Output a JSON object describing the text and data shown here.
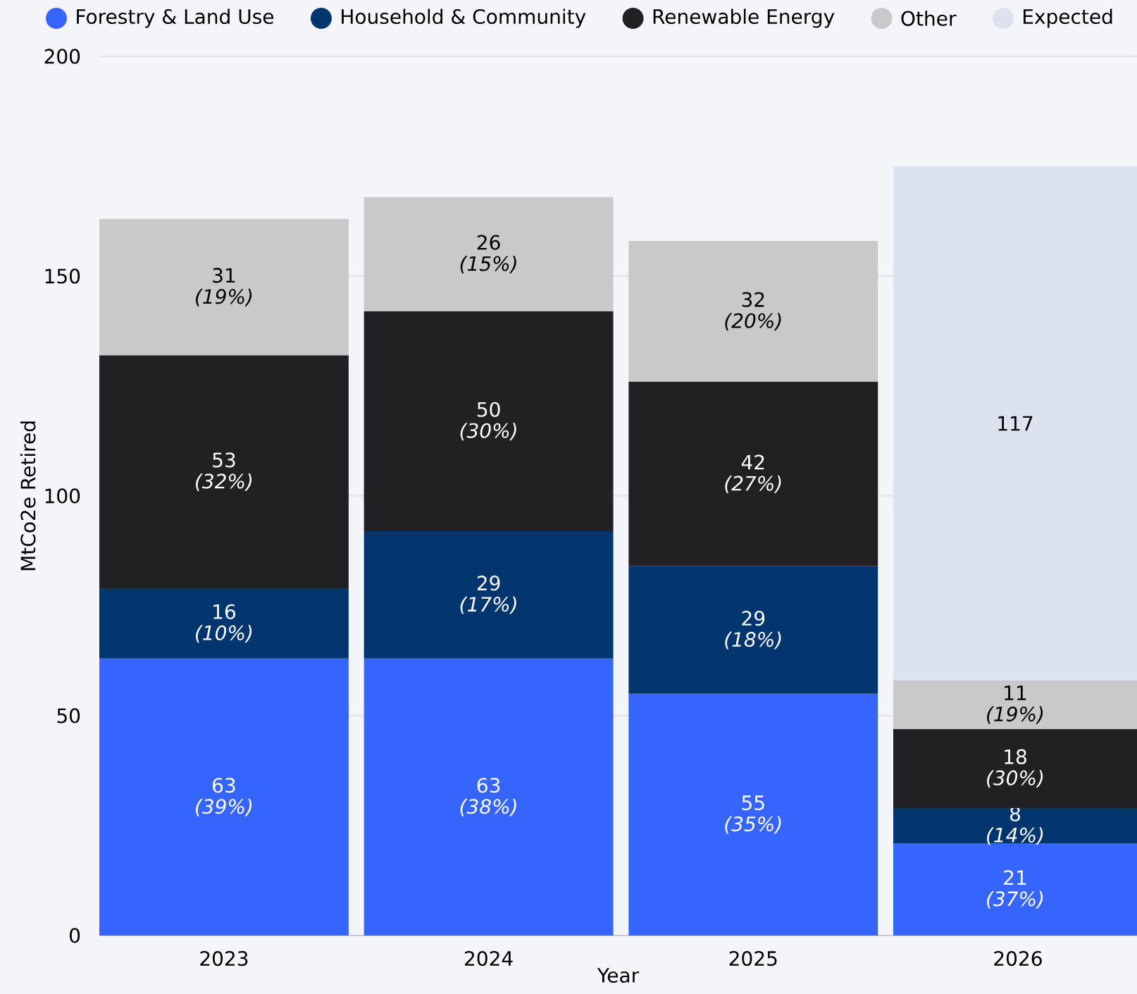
{
  "chart_data": {
    "type": "bar",
    "stacked": true,
    "xlabel": "Year",
    "ylabel": "MtCo2e Retired",
    "categories": [
      "2023",
      "2024",
      "2025",
      "2026"
    ],
    "ylim": [
      0,
      200
    ],
    "yticks": [
      0,
      50,
      100,
      150,
      200
    ],
    "grid": "y",
    "legend": "top left",
    "series": [
      {
        "name": "Forestry & Land Use",
        "color": "#3565fd",
        "values": [
          63,
          63,
          55,
          21
        ],
        "value_labels": [
          "63 *(39%)*",
          "63 *(38%)*",
          "55 *(35%)*",
          "21 *(37%)*"
        ]
      },
      {
        "name": "Household & Community",
        "color": "#03356e",
        "values": [
          16,
          29,
          29,
          8
        ],
        "value_labels": [
          "16 *(10%)*",
          "29 *(17%)*",
          "29 *(18%)*",
          "8 *(14%)*"
        ]
      },
      {
        "name": "Renewable Energy",
        "color": "#222022",
        "values": [
          53,
          50,
          42,
          18
        ],
        "value_labels": [
          "53 *(32%)*",
          "50 *(30%)*",
          "42 *(27%)*",
          "18 *(30%)*"
        ]
      },
      {
        "name": "Other",
        "color": "#c9c9c9",
        "values": [
          31,
          26,
          32,
          11
        ],
        "value_labels": [
          "31 *(19%)*",
          "26 *(15%)*",
          "32 *(20%)*",
          "11 *(19%)*"
        ]
      },
      {
        "name": "Expected",
        "color": "#dde3ee",
        "values": [
          null,
          null,
          null,
          117
        ],
        "value_labels": [
          null,
          null,
          null,
          "117"
        ]
      }
    ]
  }
}
